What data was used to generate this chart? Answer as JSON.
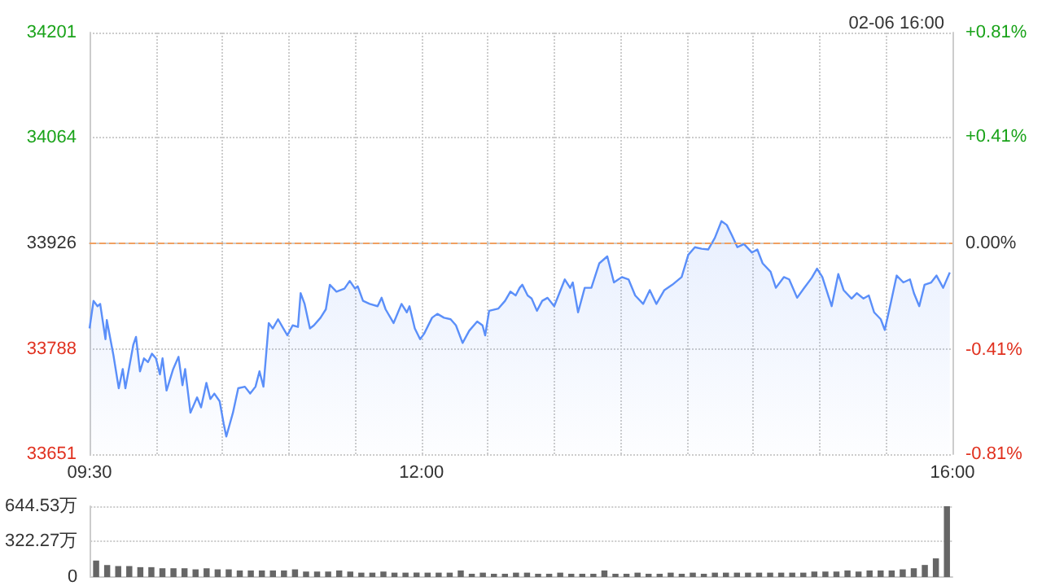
{
  "chart_data": [
    {
      "type": "area",
      "subtitle": "02-06 16:00",
      "x": [
        9.5,
        9.53,
        9.56,
        9.58,
        9.62,
        9.63,
        9.68,
        9.72,
        9.75,
        9.77,
        9.83,
        9.85,
        9.88,
        9.91,
        9.94,
        9.97,
        10.0,
        10.03,
        10.05,
        10.08,
        10.13,
        10.17,
        10.2,
        10.22,
        10.26,
        10.31,
        10.34,
        10.38,
        10.41,
        10.44,
        10.48,
        10.51,
        10.53,
        10.58,
        10.62,
        10.67,
        10.71,
        10.75,
        10.78,
        10.81,
        10.85,
        10.88,
        10.92,
        10.96,
        10.99,
        11.03,
        11.07,
        11.09,
        11.12,
        11.16,
        11.19,
        11.24,
        11.28,
        11.31,
        11.36,
        11.42,
        11.46,
        11.5,
        11.52,
        11.56,
        11.61,
        11.67,
        11.7,
        11.73,
        11.79,
        11.85,
        11.89,
        11.91,
        11.95,
        11.99,
        12.02,
        12.08,
        12.12,
        12.17,
        12.22,
        12.26,
        12.31,
        12.36,
        12.42,
        12.46,
        12.48,
        12.51,
        12.58,
        12.63,
        12.67,
        12.71,
        12.74,
        12.76,
        12.8,
        12.83,
        12.87,
        12.91,
        12.95,
        13.0,
        13.08,
        13.12,
        13.14,
        13.18,
        13.23,
        13.28,
        13.34,
        13.4,
        13.45,
        13.51,
        13.56,
        13.61,
        13.67,
        13.72,
        13.77,
        13.83,
        13.89,
        13.96,
        14.01,
        14.06,
        14.11,
        14.16,
        14.21,
        14.26,
        14.3,
        14.34,
        14.38,
        14.43,
        14.49,
        14.53,
        14.57,
        14.63,
        14.67,
        14.73,
        14.77,
        14.83,
        14.88,
        14.94,
        14.98,
        15.02,
        15.09,
        15.14,
        15.18,
        15.24,
        15.28,
        15.33,
        15.37,
        15.41,
        15.46,
        15.49,
        15.53,
        15.58,
        15.63,
        15.68,
        15.71,
        15.75,
        15.79,
        15.84,
        15.88,
        15.93,
        15.98
      ],
      "series": [
        {
          "color": "#5b8ff9",
          "values": [
            33815,
            33851,
            33844,
            33847,
            33801,
            33826,
            33780,
            33737,
            33762,
            33737,
            33794,
            33804,
            33759,
            33776,
            33771,
            33782,
            33776,
            33755,
            33776,
            33734,
            33762,
            33778,
            33741,
            33762,
            33705,
            33725,
            33712,
            33744,
            33723,
            33730,
            33720,
            33691,
            33674,
            33705,
            33737,
            33739,
            33730,
            33739,
            33759,
            33739,
            33822,
            33815,
            33827,
            33815,
            33806,
            33819,
            33817,
            33861,
            33847,
            33815,
            33819,
            33829,
            33840,
            33872,
            33863,
            33867,
            33877,
            33867,
            33870,
            33851,
            33847,
            33844,
            33855,
            33840,
            33822,
            33847,
            33836,
            33844,
            33815,
            33801,
            33808,
            33829,
            33834,
            33829,
            33827,
            33819,
            33796,
            33812,
            33824,
            33819,
            33806,
            33838,
            33841,
            33851,
            33863,
            33858,
            33868,
            33872,
            33858,
            33854,
            33838,
            33851,
            33855,
            33844,
            33879,
            33868,
            33875,
            33836,
            33868,
            33868,
            33900,
            33909,
            33875,
            33882,
            33879,
            33858,
            33847,
            33865,
            33847,
            33865,
            33872,
            33882,
            33911,
            33921,
            33919,
            33918,
            33933,
            33955,
            33950,
            33936,
            33921,
            33925,
            33914,
            33918,
            33900,
            33889,
            33868,
            33882,
            33879,
            33855,
            33867,
            33881,
            33893,
            33882,
            33844,
            33886,
            33865,
            33854,
            33861,
            33854,
            33858,
            33836,
            33827,
            33813,
            33844,
            33884,
            33875,
            33879,
            33861,
            33844,
            33872,
            33875,
            33884,
            33868,
            33888
          ]
        }
      ],
      "xlim": [
        9.5,
        16
      ],
      "xticks": [
        {
          "value": 9.5,
          "label": "09:30"
        },
        {
          "value": 10,
          "label": null
        },
        {
          "value": 10.5,
          "label": null
        },
        {
          "value": 11,
          "label": null
        },
        {
          "value": 11.5,
          "label": null
        },
        {
          "value": 12,
          "label": "12:00"
        },
        {
          "value": 12.5,
          "label": null
        },
        {
          "value": 13,
          "label": null
        },
        {
          "value": 13.5,
          "label": null
        },
        {
          "value": 14,
          "label": null
        },
        {
          "value": 14.5,
          "label": null
        },
        {
          "value": 15,
          "label": null
        },
        {
          "value": 15.5,
          "label": null
        },
        {
          "value": 16,
          "label": "16:00"
        }
      ],
      "ylim": [
        33651,
        34201
      ],
      "yticks": [
        33651,
        33788,
        33926,
        34064,
        34201
      ],
      "y2lim": [
        -0.81,
        0.81
      ],
      "y2ticks": [
        {
          "value": -0.81,
          "label": "-0.81%"
        },
        {
          "value": -0.41,
          "label": "-0.41%"
        },
        {
          "value": 0,
          "label": "0.00%"
        },
        {
          "value": 0.41,
          "label": "+0.41%"
        },
        {
          "value": 0.81,
          "label": "+0.81%"
        }
      ],
      "ref_lines": [
        {
          "axis": "y",
          "value": 33926,
          "color": "#f0a060",
          "line_style": "dashed"
        }
      ],
      "grid": true
    },
    {
      "type": "bar",
      "categories": [
        null,
        null,
        null,
        null,
        null,
        null,
        null,
        null,
        null,
        null,
        null,
        null,
        null,
        null,
        null,
        null,
        null,
        null,
        null,
        null,
        null,
        null,
        null,
        null,
        null,
        null,
        null,
        null,
        null,
        null,
        null,
        null,
        null,
        null,
        null,
        null,
        null,
        null,
        null,
        null,
        null,
        null,
        null,
        null,
        null,
        null,
        null,
        null,
        null,
        null,
        null,
        null,
        null,
        null,
        null,
        null,
        null,
        null,
        null,
        null,
        null,
        null,
        null,
        null,
        null,
        null,
        null,
        null,
        null,
        null,
        null,
        null,
        null,
        null,
        null,
        null,
        null,
        null
      ],
      "series": [
        {
          "color": "#666666",
          "values": [
            150,
            110,
            100,
            100,
            90,
            90,
            80,
            80,
            80,
            70,
            80,
            70,
            70,
            60,
            60,
            60,
            60,
            60,
            70,
            50,
            50,
            50,
            60,
            50,
            40,
            40,
            50,
            40,
            40,
            40,
            40,
            40,
            40,
            60,
            30,
            40,
            30,
            30,
            40,
            40,
            30,
            30,
            40,
            30,
            30,
            30,
            60,
            30,
            30,
            40,
            30,
            30,
            40,
            30,
            40,
            30,
            40,
            40,
            40,
            40,
            40,
            40,
            40,
            40,
            40,
            50,
            50,
            50,
            60,
            50,
            60,
            60,
            60,
            70,
            80,
            110,
            170,
            644.53
          ]
        }
      ],
      "ylim": [
        0,
        644.53
      ],
      "yticks": [
        0,
        {
          "value": 322.27,
          "label": "322.27万"
        },
        {
          "value": 644.53,
          "label": "644.53万"
        }
      ],
      "grid": "y",
      "tick_labels": "y"
    }
  ]
}
